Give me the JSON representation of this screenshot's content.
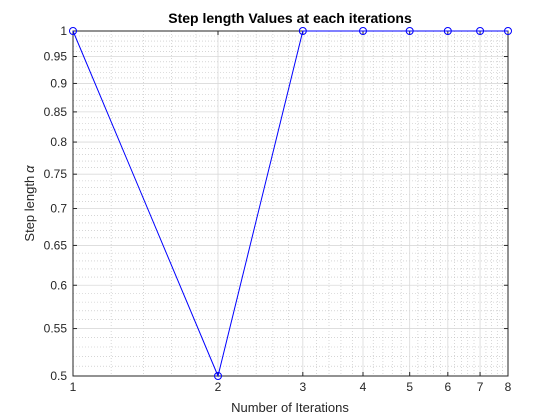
{
  "chart_data": {
    "type": "line",
    "title": "Step length Values at each iterations",
    "xlabel": "Number of Iterations",
    "ylabel": "Step length",
    "ylabel_symbol": "α",
    "xscale": "log",
    "yscale": "log",
    "xlim": [
      1,
      8
    ],
    "ylim": [
      0.5,
      1
    ],
    "x_ticks": [
      1,
      2,
      3,
      4,
      5,
      6,
      7,
      8
    ],
    "x_tick_labels": [
      "1",
      "2",
      "3",
      "4",
      "5",
      "6",
      "7",
      "8"
    ],
    "y_ticks": [
      0.5,
      0.55,
      0.6,
      0.65,
      0.7,
      0.75,
      0.8,
      0.85,
      0.9,
      0.95,
      1
    ],
    "y_tick_labels": [
      "0.5",
      "0.55",
      "0.6",
      "0.65",
      "0.7",
      "0.75",
      "0.8",
      "0.85",
      "0.9",
      "0.95",
      "1"
    ],
    "grid": true,
    "minor_grid": true,
    "series": [
      {
        "x": [
          1,
          2,
          3,
          4,
          5,
          6,
          7,
          8
        ],
        "values": [
          1,
          0.5,
          1,
          1,
          1,
          1,
          1,
          1
        ],
        "color": "#0000ff",
        "marker": "circle"
      }
    ]
  }
}
